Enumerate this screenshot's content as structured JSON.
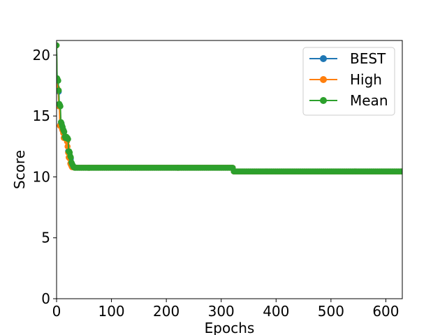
{
  "chart_data": {
    "type": "line",
    "title": "",
    "xlabel": "Epochs",
    "ylabel": "Score",
    "xlim": [
      0,
      630
    ],
    "ylim": [
      0,
      21.2
    ],
    "xticks": [
      0,
      100,
      200,
      300,
      400,
      500,
      600
    ],
    "yticks": [
      0,
      5,
      10,
      15,
      20
    ],
    "grid": false,
    "legend_position": "top-right",
    "series": [
      {
        "name": "BEST",
        "color": "#1f77b4",
        "marker": "circle",
        "segments": [
          {
            "points": [
              [
                0,
                20.8
              ],
              [
                1,
                18.0
              ],
              [
                2,
                17.9
              ],
              [
                3,
                17.1
              ],
              [
                4,
                17.0
              ],
              [
                5,
                15.9
              ],
              [
                6,
                15.9
              ],
              [
                7,
                14.3
              ],
              [
                8,
                14.3
              ],
              [
                9,
                14.4
              ],
              [
                10,
                14.2
              ],
              [
                11,
                14.0
              ],
              [
                12,
                13.8
              ],
              [
                13,
                13.8
              ],
              [
                14,
                13.2
              ],
              [
                15,
                13.2
              ],
              [
                16,
                13.2
              ],
              [
                17,
                13.2
              ],
              [
                18,
                13.2
              ],
              [
                19,
                13.2
              ],
              [
                20,
                13.1
              ],
              [
                21,
                12.1
              ],
              [
                22,
                12.1
              ],
              [
                23,
                12.0
              ],
              [
                24,
                11.6
              ],
              [
                25,
                11.6
              ],
              [
                26,
                11.5
              ],
              [
                27,
                11.1
              ],
              [
                28,
                11.1
              ],
              [
                29,
                10.9
              ],
              [
                30,
                10.9
              ],
              [
                31,
                10.8
              ],
              [
                32,
                10.8
              ],
              [
                33,
                10.8
              ]
            ]
          },
          {
            "from": 33,
            "to": 322,
            "step": 2,
            "y": 10.75
          },
          {
            "from": 323,
            "to": 630,
            "step": 2,
            "y": 10.45
          }
        ]
      },
      {
        "name": "High",
        "color": "#ff7f0e",
        "marker": "circle",
        "segments": [
          {
            "points": [
              [
                0,
                20.8
              ],
              [
                1,
                17.3
              ],
              [
                2,
                17.2
              ],
              [
                3,
                17.1
              ],
              [
                4,
                15.8
              ],
              [
                5,
                15.8
              ],
              [
                6,
                14.2
              ],
              [
                7,
                14.2
              ],
              [
                8,
                14.2
              ],
              [
                9,
                14.1
              ],
              [
                10,
                13.9
              ],
              [
                11,
                13.8
              ],
              [
                12,
                13.6
              ],
              [
                13,
                13.2
              ],
              [
                14,
                13.2
              ],
              [
                15,
                13.2
              ],
              [
                16,
                13.2
              ],
              [
                17,
                13.2
              ],
              [
                18,
                13.1
              ],
              [
                19,
                12.9
              ],
              [
                20,
                12.5
              ],
              [
                21,
                12.0
              ],
              [
                22,
                11.6
              ],
              [
                23,
                11.6
              ],
              [
                24,
                11.5
              ],
              [
                25,
                11.1
              ],
              [
                26,
                11.0
              ],
              [
                27,
                10.9
              ],
              [
                28,
                10.8
              ],
              [
                29,
                10.8
              ],
              [
                30,
                10.8
              ],
              [
                31,
                10.8
              ],
              [
                32,
                10.8
              ],
              [
                33,
                10.8
              ]
            ]
          },
          {
            "from": 33,
            "to": 322,
            "step": 2,
            "y": 10.75
          },
          {
            "from": 323,
            "to": 630,
            "step": 2,
            "y": 10.45
          }
        ]
      },
      {
        "name": "Mean",
        "color": "#2ca02c",
        "marker": "circle",
        "segments": [
          {
            "points": [
              [
                0,
                20.8
              ],
              [
                1,
                18.1
              ],
              [
                2,
                18.0
              ],
              [
                3,
                17.9
              ],
              [
                4,
                17.1
              ],
              [
                5,
                16.0
              ],
              [
                6,
                15.9
              ],
              [
                7,
                15.8
              ],
              [
                8,
                14.5
              ],
              [
                9,
                14.4
              ],
              [
                10,
                14.2
              ],
              [
                11,
                14.1
              ],
              [
                12,
                13.9
              ],
              [
                13,
                13.8
              ],
              [
                14,
                13.7
              ],
              [
                15,
                13.3
              ],
              [
                16,
                13.2
              ],
              [
                17,
                13.2
              ],
              [
                18,
                13.3
              ],
              [
                19,
                13.2
              ],
              [
                20,
                13.2
              ],
              [
                21,
                13.1
              ],
              [
                22,
                12.1
              ],
              [
                23,
                12.1
              ],
              [
                24,
                12.0
              ],
              [
                25,
                11.7
              ],
              [
                26,
                11.6
              ],
              [
                27,
                11.2
              ],
              [
                28,
                11.1
              ],
              [
                29,
                11.0
              ],
              [
                30,
                10.9
              ],
              [
                31,
                10.8
              ],
              [
                32,
                10.8
              ],
              [
                33,
                10.8
              ]
            ]
          },
          {
            "from": 33,
            "to": 322,
            "step": 2,
            "y": 10.75
          },
          {
            "from": 323,
            "to": 630,
            "step": 2,
            "y": 10.45
          }
        ]
      }
    ]
  }
}
